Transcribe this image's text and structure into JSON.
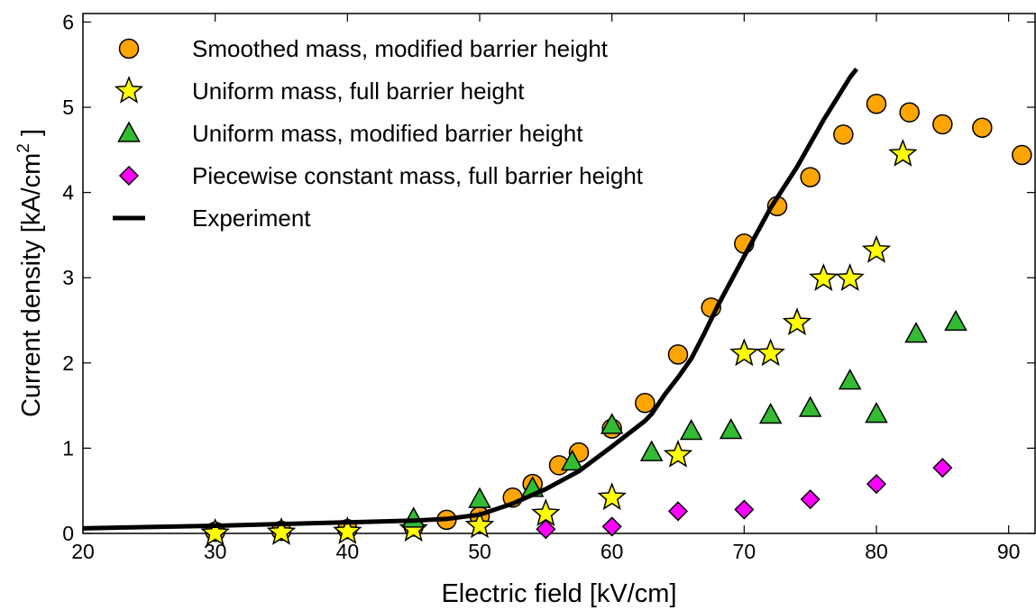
{
  "chart_data": {
    "type": "scatter",
    "xlabel": "Electric field [kV/cm]",
    "ylabel": "Current density [kA/cm^2 ]",
    "ylabel_main": "Current density [kA/cm",
    "ylabel_sup": "2",
    "ylabel_end": " ]",
    "xlim": [
      20,
      92
    ],
    "ylim": [
      0,
      6.1
    ],
    "xticks": [
      "20",
      "30",
      "40",
      "50",
      "60",
      "70",
      "80",
      "90"
    ],
    "yticks": [
      "0",
      "1",
      "2",
      "3",
      "4",
      "5",
      "6"
    ],
    "grid": false,
    "legend_position": "top-left",
    "series": [
      {
        "name": "Smoothed mass, modified barrier height",
        "marker": "circle",
        "color": "#FFA500",
        "points": [
          [
            30,
            0.02
          ],
          [
            35,
            0.03
          ],
          [
            40,
            0.05
          ],
          [
            45,
            0.08
          ],
          [
            47.5,
            0.16
          ],
          [
            50,
            0.2
          ],
          [
            52.5,
            0.42
          ],
          [
            54,
            0.58
          ],
          [
            56,
            0.8
          ],
          [
            57.5,
            0.95
          ],
          [
            60,
            1.23
          ],
          [
            62.5,
            1.53
          ],
          [
            65,
            2.1
          ],
          [
            67.5,
            2.65
          ],
          [
            70,
            3.4
          ],
          [
            72.5,
            3.84
          ],
          [
            75,
            4.18
          ],
          [
            77.5,
            4.68
          ],
          [
            80,
            5.04
          ],
          [
            82.5,
            4.94
          ],
          [
            85,
            4.8
          ],
          [
            88,
            4.76
          ],
          [
            91,
            4.44
          ]
        ]
      },
      {
        "name": "Uniform mass, full barrier height",
        "marker": "star",
        "color": "#FFFF00",
        "points": [
          [
            30,
            0.0
          ],
          [
            35,
            0.01
          ],
          [
            40,
            0.02
          ],
          [
            45,
            0.05
          ],
          [
            50,
            0.09
          ],
          [
            55,
            0.23
          ],
          [
            60,
            0.42
          ],
          [
            65,
            0.92
          ],
          [
            70,
            2.11
          ],
          [
            72,
            2.11
          ],
          [
            74,
            2.47
          ],
          [
            76,
            2.99
          ],
          [
            78,
            2.99
          ],
          [
            80,
            3.32
          ],
          [
            82,
            4.45
          ]
        ]
      },
      {
        "name": "Uniform mass, modified barrier height",
        "marker": "triangle",
        "color": "#33BB33",
        "points": [
          [
            45,
            0.17
          ],
          [
            50,
            0.4
          ],
          [
            54,
            0.53
          ],
          [
            57,
            0.84
          ],
          [
            60,
            1.27
          ],
          [
            63,
            0.95
          ],
          [
            66,
            1.2
          ],
          [
            69,
            1.21
          ],
          [
            72,
            1.39
          ],
          [
            75,
            1.47
          ],
          [
            78,
            1.79
          ],
          [
            80,
            1.4
          ],
          [
            83,
            2.34
          ],
          [
            86,
            2.48
          ]
        ]
      },
      {
        "name": "Piecewise constant mass, full barrier height",
        "marker": "diamond",
        "color": "#FF00FF",
        "points": [
          [
            55,
            0.05
          ],
          [
            60,
            0.08
          ],
          [
            65,
            0.26
          ],
          [
            70,
            0.28
          ],
          [
            75,
            0.4
          ],
          [
            80,
            0.58
          ],
          [
            85,
            0.77
          ]
        ]
      },
      {
        "name": "Experiment",
        "marker": "line",
        "color": "#000000",
        "points": [
          [
            20,
            0.06
          ],
          [
            30,
            0.09
          ],
          [
            40,
            0.13
          ],
          [
            45,
            0.15
          ],
          [
            47.5,
            0.17
          ],
          [
            50,
            0.22
          ],
          [
            52.5,
            0.35
          ],
          [
            55,
            0.52
          ],
          [
            57.5,
            0.73
          ],
          [
            60,
            1.02
          ],
          [
            62.5,
            1.32
          ],
          [
            63,
            1.4
          ],
          [
            64,
            1.63
          ],
          [
            65,
            1.83
          ],
          [
            66,
            2.05
          ],
          [
            67,
            2.35
          ],
          [
            68,
            2.67
          ],
          [
            70,
            3.25
          ],
          [
            72,
            3.82
          ],
          [
            74,
            4.3
          ],
          [
            76,
            4.85
          ],
          [
            78,
            5.35
          ],
          [
            78.5,
            5.45
          ]
        ]
      }
    ]
  }
}
